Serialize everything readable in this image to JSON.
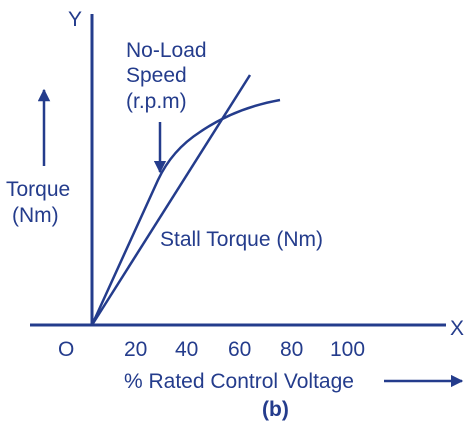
{
  "axes": {
    "y_name": "Y",
    "x_name": "X",
    "origin": "O",
    "x_ticks": [
      "20",
      "40",
      "60",
      "80",
      "100"
    ],
    "x_title": "% Rated Control Voltage",
    "y_title": [
      "Torque",
      "(Nm)"
    ]
  },
  "curves": {
    "speed": [
      "No-Load",
      "Speed",
      "(r.p.m)"
    ],
    "torque": "Stall Torque (Nm)"
  },
  "caption": "(b)"
}
